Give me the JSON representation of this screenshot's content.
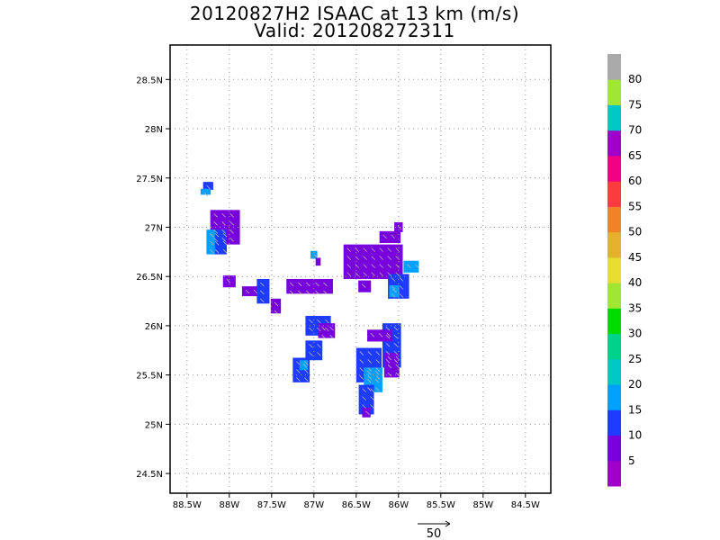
{
  "title_line1": "20120827H2 ISAAC at 13 km (m/s)",
  "title_line2": "Valid: 201208272311",
  "chart_data": {
    "type": "heatmap",
    "title": "20120827H2 ISAAC at 13 km (m/s)",
    "subtitle": "Valid: 201208272311",
    "x_ticks": [
      "88.5W",
      "88W",
      "87.5W",
      "87W",
      "86.5W",
      "86W",
      "85.5W",
      "85W",
      "84.5W"
    ],
    "x_tick_values": [
      -88.5,
      -88,
      -87.5,
      -87,
      -86.5,
      -86,
      -85.5,
      -85,
      -84.5
    ],
    "y_ticks": [
      "24.5N",
      "25N",
      "25.5N",
      "26N",
      "26.5N",
      "27N",
      "27.5N",
      "28N",
      "28.5N"
    ],
    "y_tick_values": [
      24.5,
      25,
      25.5,
      26,
      26.5,
      27,
      27.5,
      28,
      28.5
    ],
    "xlim": [
      -88.7,
      -84.2
    ],
    "ylim": [
      24.3,
      28.85
    ],
    "grid": true,
    "colorbar": {
      "labels": [
        "5",
        "10",
        "15",
        "20",
        "25",
        "30",
        "35",
        "40",
        "45",
        "50",
        "55",
        "60",
        "65",
        "70",
        "75",
        "80"
      ],
      "colors": [
        "#a000c8",
        "#7800dc",
        "#1e3cff",
        "#00a0ff",
        "#00c8c8",
        "#00d28c",
        "#00dc00",
        "#a0e632",
        "#e6dc32",
        "#e6af2d",
        "#f08228",
        "#fa3c3c",
        "#f00082",
        "#a000c8",
        "#00c8c8",
        "#a0e632",
        "#aaaaaa"
      ]
    },
    "reference_vector": {
      "label": "50",
      "magnitude": 50
    },
    "cells": [
      {
        "lon": -88.25,
        "lat": 27.42,
        "w": 0.12,
        "h": 0.08,
        "c": "#1e3cff"
      },
      {
        "lon": -88.28,
        "lat": 27.36,
        "w": 0.12,
        "h": 0.06,
        "c": "#00a0ff"
      },
      {
        "lon": -88.05,
        "lat": 27.0,
        "w": 0.35,
        "h": 0.35,
        "c": "#7800dc"
      },
      {
        "lon": -88.12,
        "lat": 26.85,
        "w": 0.18,
        "h": 0.25,
        "c": "#1e3cff"
      },
      {
        "lon": -88.22,
        "lat": 26.85,
        "w": 0.1,
        "h": 0.25,
        "c": "#00a0ff"
      },
      {
        "lon": -88.0,
        "lat": 26.45,
        "w": 0.15,
        "h": 0.12,
        "c": "#7800dc"
      },
      {
        "lon": -87.75,
        "lat": 26.35,
        "w": 0.2,
        "h": 0.1,
        "c": "#7800dc"
      },
      {
        "lon": -87.6,
        "lat": 26.35,
        "w": 0.15,
        "h": 0.25,
        "c": "#1e3cff"
      },
      {
        "lon": -87.45,
        "lat": 26.2,
        "w": 0.12,
        "h": 0.15,
        "c": "#7800dc"
      },
      {
        "lon": -87.15,
        "lat": 26.4,
        "w": 0.35,
        "h": 0.15,
        "c": "#7800dc"
      },
      {
        "lon": -86.9,
        "lat": 26.4,
        "w": 0.25,
        "h": 0.15,
        "c": "#7800dc"
      },
      {
        "lon": -87.0,
        "lat": 26.72,
        "w": 0.08,
        "h": 0.08,
        "c": "#00a0ff"
      },
      {
        "lon": -86.95,
        "lat": 26.65,
        "w": 0.06,
        "h": 0.08,
        "c": "#7800dc"
      },
      {
        "lon": -86.3,
        "lat": 26.65,
        "w": 0.7,
        "h": 0.35,
        "c": "#7800dc"
      },
      {
        "lon": -86.1,
        "lat": 26.9,
        "w": 0.25,
        "h": 0.12,
        "c": "#7800dc"
      },
      {
        "lon": -86.0,
        "lat": 27.0,
        "w": 0.1,
        "h": 0.1,
        "c": "#7800dc"
      },
      {
        "lon": -86.0,
        "lat": 26.4,
        "w": 0.25,
        "h": 0.25,
        "c": "#1e3cff"
      },
      {
        "lon": -85.85,
        "lat": 26.6,
        "w": 0.18,
        "h": 0.12,
        "c": "#00a0ff"
      },
      {
        "lon": -86.05,
        "lat": 26.35,
        "w": 0.12,
        "h": 0.12,
        "c": "#00a0ff"
      },
      {
        "lon": -86.4,
        "lat": 26.4,
        "w": 0.15,
        "h": 0.12,
        "c": "#7800dc"
      },
      {
        "lon": -86.95,
        "lat": 26.0,
        "w": 0.3,
        "h": 0.2,
        "c": "#1e3cff"
      },
      {
        "lon": -86.85,
        "lat": 25.95,
        "w": 0.2,
        "h": 0.15,
        "c": "#7800dc"
      },
      {
        "lon": -87.0,
        "lat": 25.75,
        "w": 0.2,
        "h": 0.2,
        "c": "#1e3cff"
      },
      {
        "lon": -87.15,
        "lat": 25.55,
        "w": 0.2,
        "h": 0.25,
        "c": "#1e3cff"
      },
      {
        "lon": -87.12,
        "lat": 25.6,
        "w": 0.1,
        "h": 0.1,
        "c": "#00a0ff"
      },
      {
        "lon": -86.08,
        "lat": 25.8,
        "w": 0.22,
        "h": 0.45,
        "c": "#1e3cff"
      },
      {
        "lon": -86.08,
        "lat": 25.6,
        "w": 0.18,
        "h": 0.25,
        "c": "#7800dc"
      },
      {
        "lon": -86.35,
        "lat": 25.6,
        "w": 0.3,
        "h": 0.35,
        "c": "#1e3cff"
      },
      {
        "lon": -86.3,
        "lat": 25.45,
        "w": 0.22,
        "h": 0.25,
        "c": "#00a0ff"
      },
      {
        "lon": -86.38,
        "lat": 25.25,
        "w": 0.18,
        "h": 0.3,
        "c": "#1e3cff"
      },
      {
        "lon": -86.38,
        "lat": 25.12,
        "w": 0.1,
        "h": 0.1,
        "c": "#7800dc"
      },
      {
        "lon": -86.22,
        "lat": 25.9,
        "w": 0.3,
        "h": 0.12,
        "c": "#7800dc"
      }
    ]
  }
}
